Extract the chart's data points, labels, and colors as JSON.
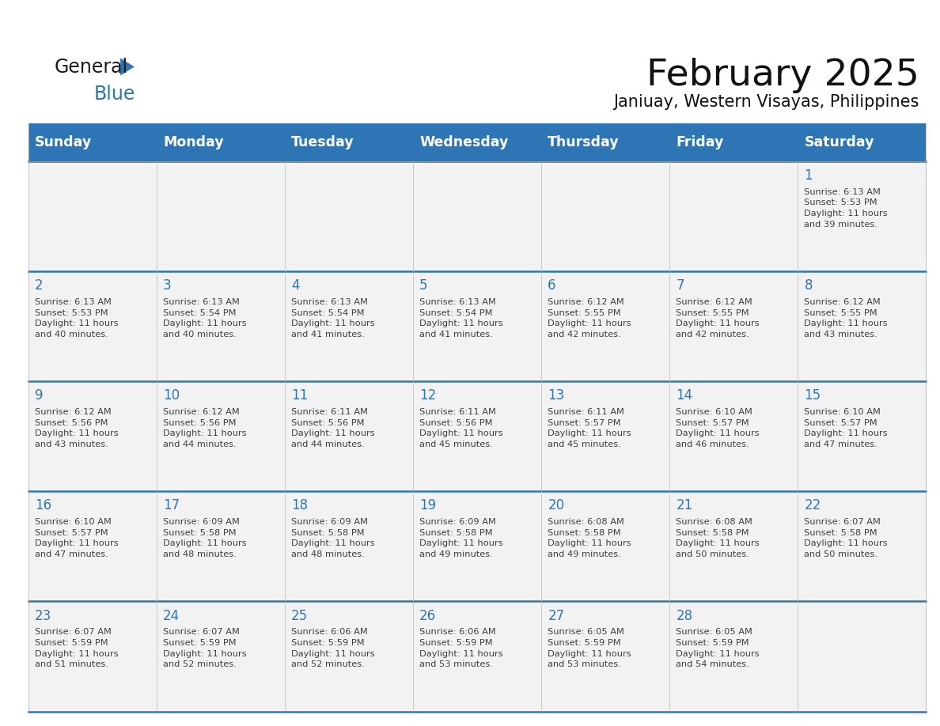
{
  "title": "February 2025",
  "subtitle": "Janiuay, Western Visayas, Philippines",
  "days_of_week": [
    "Sunday",
    "Monday",
    "Tuesday",
    "Wednesday",
    "Thursday",
    "Friday",
    "Saturday"
  ],
  "header_bg": "#2E75B6",
  "header_text": "#FFFFFF",
  "cell_bg": "#F2F2F2",
  "separator_color": "#2E75B6",
  "day_num_color": "#2E75B6",
  "text_color": "#404040",
  "logo_general_color": "#1a1a1a",
  "logo_blue_color": "#2E75B6",
  "calendar_data": [
    [
      null,
      null,
      null,
      null,
      null,
      null,
      {
        "day": 1,
        "sunrise": "6:13 AM",
        "sunset": "5:53 PM",
        "daylight": "11 hours and 39 minutes."
      }
    ],
    [
      {
        "day": 2,
        "sunrise": "6:13 AM",
        "sunset": "5:53 PM",
        "daylight": "11 hours and 40 minutes."
      },
      {
        "day": 3,
        "sunrise": "6:13 AM",
        "sunset": "5:54 PM",
        "daylight": "11 hours and 40 minutes."
      },
      {
        "day": 4,
        "sunrise": "6:13 AM",
        "sunset": "5:54 PM",
        "daylight": "11 hours and 41 minutes."
      },
      {
        "day": 5,
        "sunrise": "6:13 AM",
        "sunset": "5:54 PM",
        "daylight": "11 hours and 41 minutes."
      },
      {
        "day": 6,
        "sunrise": "6:12 AM",
        "sunset": "5:55 PM",
        "daylight": "11 hours and 42 minutes."
      },
      {
        "day": 7,
        "sunrise": "6:12 AM",
        "sunset": "5:55 PM",
        "daylight": "11 hours and 42 minutes."
      },
      {
        "day": 8,
        "sunrise": "6:12 AM",
        "sunset": "5:55 PM",
        "daylight": "11 hours and 43 minutes."
      }
    ],
    [
      {
        "day": 9,
        "sunrise": "6:12 AM",
        "sunset": "5:56 PM",
        "daylight": "11 hours and 43 minutes."
      },
      {
        "day": 10,
        "sunrise": "6:12 AM",
        "sunset": "5:56 PM",
        "daylight": "11 hours and 44 minutes."
      },
      {
        "day": 11,
        "sunrise": "6:11 AM",
        "sunset": "5:56 PM",
        "daylight": "11 hours and 44 minutes."
      },
      {
        "day": 12,
        "sunrise": "6:11 AM",
        "sunset": "5:56 PM",
        "daylight": "11 hours and 45 minutes."
      },
      {
        "day": 13,
        "sunrise": "6:11 AM",
        "sunset": "5:57 PM",
        "daylight": "11 hours and 45 minutes."
      },
      {
        "day": 14,
        "sunrise": "6:10 AM",
        "sunset": "5:57 PM",
        "daylight": "11 hours and 46 minutes."
      },
      {
        "day": 15,
        "sunrise": "6:10 AM",
        "sunset": "5:57 PM",
        "daylight": "11 hours and 47 minutes."
      }
    ],
    [
      {
        "day": 16,
        "sunrise": "6:10 AM",
        "sunset": "5:57 PM",
        "daylight": "11 hours and 47 minutes."
      },
      {
        "day": 17,
        "sunrise": "6:09 AM",
        "sunset": "5:58 PM",
        "daylight": "11 hours and 48 minutes."
      },
      {
        "day": 18,
        "sunrise": "6:09 AM",
        "sunset": "5:58 PM",
        "daylight": "11 hours and 48 minutes."
      },
      {
        "day": 19,
        "sunrise": "6:09 AM",
        "sunset": "5:58 PM",
        "daylight": "11 hours and 49 minutes."
      },
      {
        "day": 20,
        "sunrise": "6:08 AM",
        "sunset": "5:58 PM",
        "daylight": "11 hours and 49 minutes."
      },
      {
        "day": 21,
        "sunrise": "6:08 AM",
        "sunset": "5:58 PM",
        "daylight": "11 hours and 50 minutes."
      },
      {
        "day": 22,
        "sunrise": "6:07 AM",
        "sunset": "5:58 PM",
        "daylight": "11 hours and 50 minutes."
      }
    ],
    [
      {
        "day": 23,
        "sunrise": "6:07 AM",
        "sunset": "5:59 PM",
        "daylight": "11 hours and 51 minutes."
      },
      {
        "day": 24,
        "sunrise": "6:07 AM",
        "sunset": "5:59 PM",
        "daylight": "11 hours and 52 minutes."
      },
      {
        "day": 25,
        "sunrise": "6:06 AM",
        "sunset": "5:59 PM",
        "daylight": "11 hours and 52 minutes."
      },
      {
        "day": 26,
        "sunrise": "6:06 AM",
        "sunset": "5:59 PM",
        "daylight": "11 hours and 53 minutes."
      },
      {
        "day": 27,
        "sunrise": "6:05 AM",
        "sunset": "5:59 PM",
        "daylight": "11 hours and 53 minutes."
      },
      {
        "day": 28,
        "sunrise": "6:05 AM",
        "sunset": "5:59 PM",
        "daylight": "11 hours and 54 minutes."
      },
      null
    ]
  ]
}
